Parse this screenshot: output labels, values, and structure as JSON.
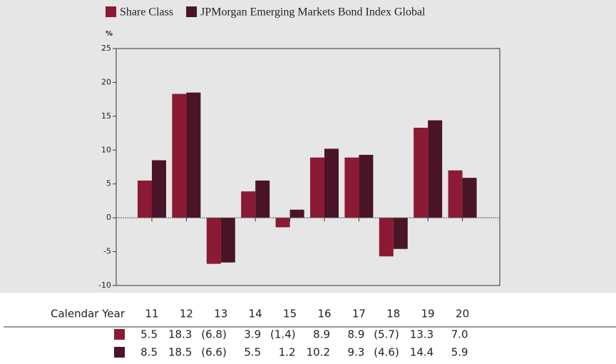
{
  "chart_data": {
    "type": "bar",
    "ylabel": "%",
    "xlabel": "Calendar Year",
    "categories": [
      "11",
      "12",
      "13",
      "14",
      "15",
      "16",
      "17",
      "18",
      "19",
      "20"
    ],
    "series": [
      {
        "name": "Share Class",
        "color": "#8b1a35",
        "values": [
          5.5,
          18.3,
          -6.8,
          3.9,
          -1.4,
          8.9,
          8.9,
          -5.7,
          13.3,
          7.0
        ],
        "value_labels": [
          "5.5",
          "18.3",
          "(6.8)",
          "3.9",
          "(1.4)",
          "8.9",
          "8.9",
          "(5.7)",
          "13.3",
          "7.0"
        ]
      },
      {
        "name": "JPMorgan Emerging Markets Bond Index Global",
        "color": "#4a1428",
        "values": [
          8.5,
          18.5,
          -6.6,
          5.5,
          1.2,
          10.2,
          9.3,
          -4.6,
          14.4,
          5.9
        ],
        "value_labels": [
          "8.5",
          "18.5",
          "(6.6)",
          "5.5",
          "1.2",
          "10.2",
          "9.3",
          "(4.6)",
          "14.4",
          "5.9"
        ]
      }
    ],
    "ylim": [
      -10,
      25
    ],
    "yticks": [
      -10,
      -5,
      0,
      5,
      10,
      15,
      20,
      25
    ],
    "legend": "top"
  }
}
